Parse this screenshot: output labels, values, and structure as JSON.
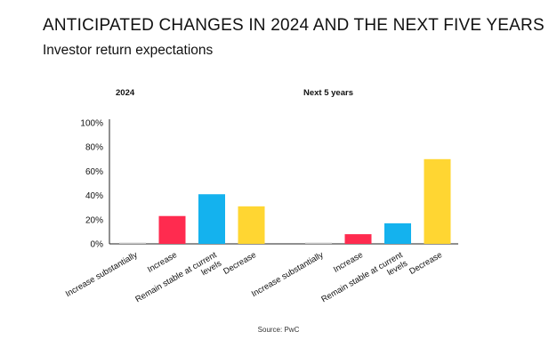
{
  "title": "ANTICIPATED CHANGES IN 2024 AND THE NEXT FIVE YEARS",
  "subtitle": "Investor return expectations",
  "source": "Source: PwC",
  "colors": {
    "increase_substantially": "#c8c8c8",
    "increase": "#ff2b4f",
    "remain_stable": "#14b2ee",
    "decrease": "#ffd632",
    "axis": "#222222"
  },
  "chart_data": {
    "type": "bar",
    "y_ticks": [
      "0%",
      "20%",
      "40%",
      "60%",
      "80%",
      "100%"
    ],
    "ylim": [
      0,
      100
    ],
    "grid": false,
    "legend": "none",
    "categories": [
      "Increase substantially",
      "Increase",
      "Remain stable at current levels",
      "Decrease"
    ],
    "category_lines": [
      [
        "Increase substantially"
      ],
      [
        "Increase"
      ],
      [
        "Remain stable at current",
        "levels"
      ],
      [
        "Decrease"
      ]
    ],
    "groups": [
      {
        "name": "2024",
        "values": [
          1,
          23,
          41,
          31
        ]
      },
      {
        "name": "Next 5 years",
        "values": [
          1,
          8,
          17,
          70
        ]
      }
    ]
  }
}
